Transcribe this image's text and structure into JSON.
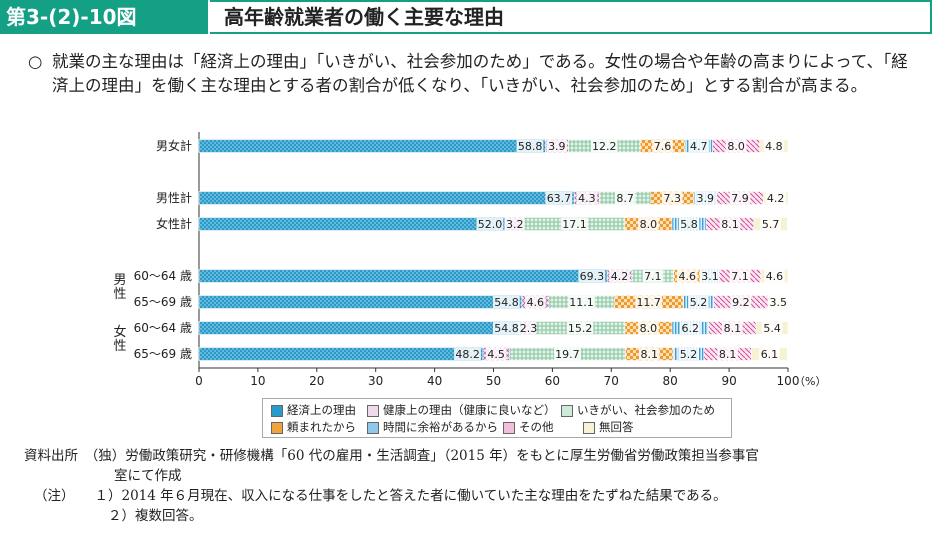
{
  "header": {
    "figure_no": "第3-(2)-10図",
    "title": "高年齢就業者の働く主要な理由"
  },
  "summary": {
    "bullet": "○",
    "text": "就業の主な理由は「経済上の理由」「いきがい、社会参加のため」である。女性の場合や年齢の高まりによって、「経済上の理由」を働く主な理由とする者の割合が低くなり、「いきがい、社会参加のため」とする割合が高まる。"
  },
  "chart_data": {
    "type": "bar",
    "orientation": "horizontal",
    "stacked": true,
    "categories": [
      "男女計",
      "男性計",
      "女性計",
      "60〜64 歳",
      "65〜69 歳",
      "60〜64 歳",
      "65〜69 歳"
    ],
    "group_labels": [
      "男性",
      "女性"
    ],
    "series": [
      {
        "name": "経済上の理由",
        "values": [
          58.8,
          63.7,
          52.0,
          69.3,
          54.8,
          54.8,
          48.2
        ]
      },
      {
        "name": "健康上の理由（健康に良いなど）",
        "values": [
          3.9,
          4.3,
          3.2,
          4.2,
          4.6,
          2.3,
          4.5
        ]
      },
      {
        "name": "いきがい、社会参加のため",
        "values": [
          12.2,
          8.7,
          17.1,
          7.1,
          11.1,
          15.2,
          19.7
        ]
      },
      {
        "name": "頼まれたから",
        "values": [
          7.6,
          7.3,
          8.0,
          4.6,
          11.7,
          8.0,
          8.1
        ]
      },
      {
        "name": "時間に余裕があるから",
        "values": [
          4.7,
          3.9,
          5.8,
          3.1,
          5.2,
          6.2,
          5.2
        ]
      },
      {
        "name": "その他",
        "values": [
          8.0,
          7.9,
          8.1,
          7.1,
          9.2,
          8.1,
          8.1
        ]
      },
      {
        "name": "無回答",
        "values": [
          4.8,
          4.2,
          5.7,
          4.6,
          3.5,
          5.4,
          6.1
        ]
      }
    ],
    "value_labels": [
      [
        "58.8",
        "3.9",
        "12.2",
        "7.6",
        "4.7",
        "8.0",
        "4.8"
      ],
      [
        "63.7",
        "4.3",
        "8.7",
        "7.3",
        "3.9",
        "7.9",
        "4.2"
      ],
      [
        "52.0",
        "3.2",
        "17.1",
        "8.0",
        "5.8",
        "8.1",
        "5.7"
      ],
      [
        "69.3",
        "4.2",
        "7.1",
        "4.6",
        "3.1",
        "7.1",
        "4.6"
      ],
      [
        "54.8",
        "4.6",
        "11.1",
        "11.7",
        "5.2",
        "9.2",
        "3.5"
      ],
      [
        "54.8",
        "2.3",
        "15.2",
        "8.0",
        "6.2",
        "8.1",
        "5.4"
      ],
      [
        "48.2",
        "4.5",
        "19.7",
        "8.1",
        "5.2",
        "8.1",
        "6.1"
      ]
    ],
    "xlim": [
      0,
      100
    ],
    "xticks": [
      "0",
      "10",
      "20",
      "30",
      "40",
      "50",
      "60",
      "70",
      "80",
      "90",
      "100"
    ],
    "xunit": "（%）",
    "colors": [
      "#2a9bc9",
      "#c27ab6",
      "#7fbf9a",
      "#f2a23a",
      "#4fa8d8",
      "#d86aa8",
      "#f3eec8"
    ]
  },
  "source": {
    "line1": "資料出所　（独）労働政策研究・研修機構「60 代の雇用・生活調査」（2015 年）をもとに厚生労働省労働政策担当参事官",
    "line2": "室にて作成",
    "note_label": "（注）",
    "note1": "１）2014 年６月現在、収入になる仕事をしたと答えた者に働いていた主な理由をたずねた結果である。",
    "note2": "２）複数回答。"
  }
}
